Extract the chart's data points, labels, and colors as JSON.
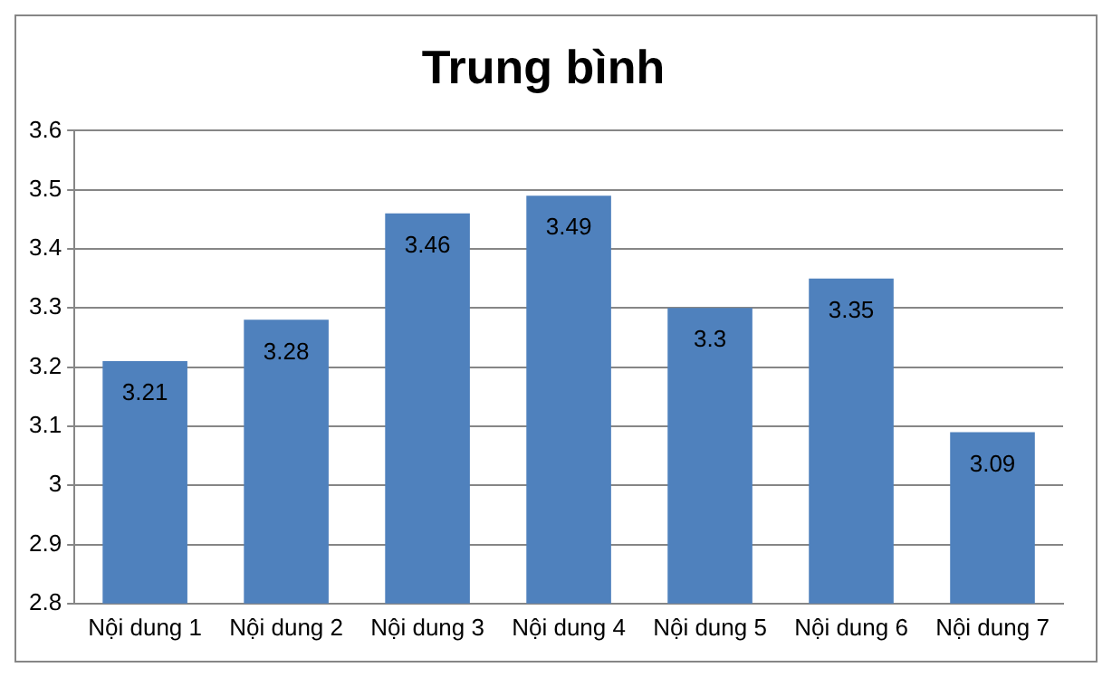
{
  "chart_data": {
    "type": "bar",
    "title": "Trung bình",
    "categories": [
      "Nội dung 1",
      "Nội dung 2",
      "Nội dung 3",
      "Nội dung 4",
      "Nội dung 5",
      "Nội dung 6",
      "Nội dung 7"
    ],
    "values": [
      3.21,
      3.28,
      3.46,
      3.49,
      3.3,
      3.35,
      3.09
    ],
    "color": "#4f81bd",
    "ylim": [
      2.8,
      3.6
    ],
    "yticks": [
      2.8,
      2.9,
      3,
      3.1,
      3.2,
      3.3,
      3.4,
      3.5,
      3.6
    ],
    "grid": "y",
    "data_labels": true
  }
}
